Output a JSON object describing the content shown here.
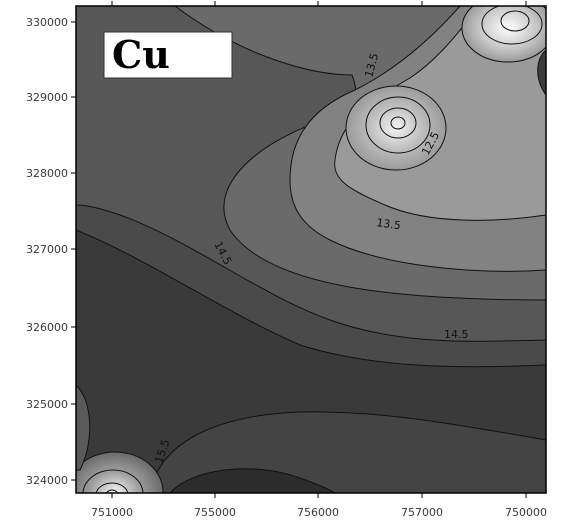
{
  "map": {
    "element_label": "Cu",
    "y_ticks": [
      "330000",
      "329000",
      "328000",
      "327000",
      "326000",
      "325000",
      "324000"
    ],
    "x_ticks": [
      "751000",
      "755000",
      "756000",
      "757000",
      "750000"
    ],
    "contour_labels": [
      "13.5",
      "12.5",
      "13.5",
      "14.5",
      "14.5",
      "15.5"
    ],
    "colors": {
      "frame": "#000000",
      "dark_fill": "#3b3b3b",
      "mid_fill": "#5c5c5c",
      "light_fill": "#8a8a8a",
      "high_fill": "#cfcfcf",
      "contour_line": "#111111"
    }
  }
}
